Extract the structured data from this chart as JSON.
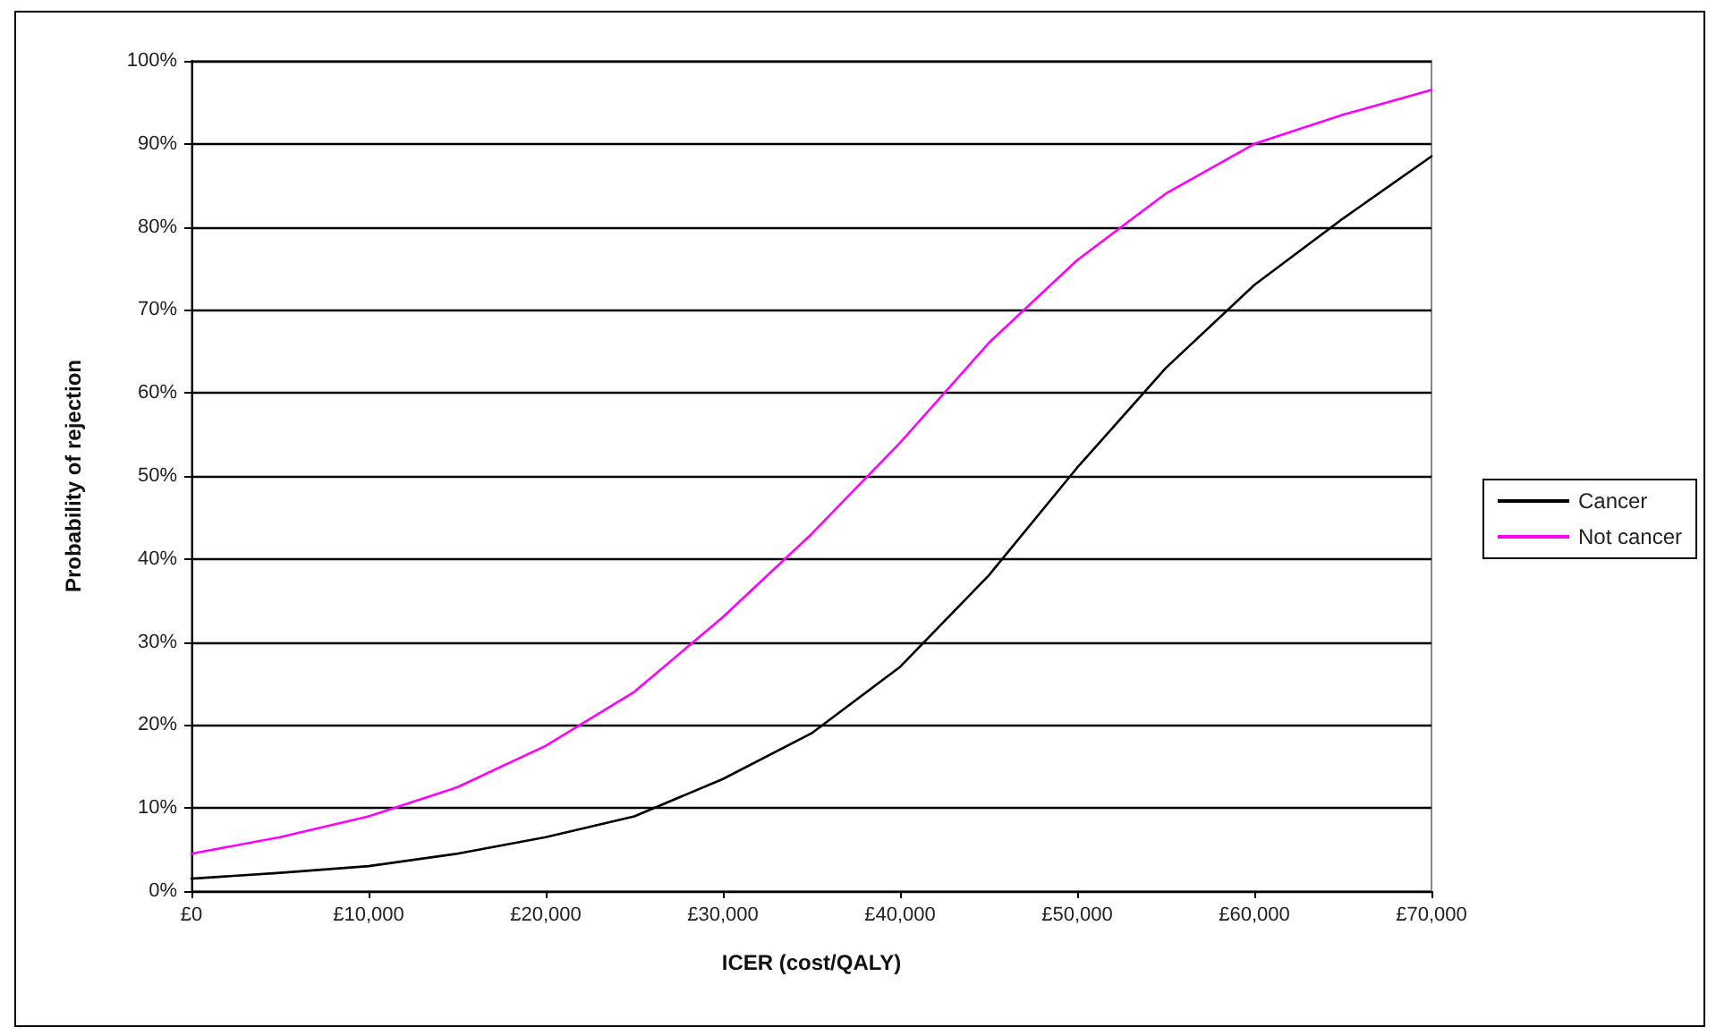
{
  "chart_data": {
    "type": "line",
    "xlabel": "ICER (cost/QALY)",
    "ylabel": "Probability of rejection",
    "x": [
      0,
      5000,
      10000,
      15000,
      20000,
      25000,
      30000,
      35000,
      40000,
      45000,
      50000,
      55000,
      60000,
      65000,
      70000
    ],
    "series": [
      {
        "name": "Cancer",
        "color": "#000000",
        "values": [
          1.5,
          2.2,
          3,
          4.5,
          6.5,
          9,
          13.5,
          19,
          27,
          38,
          51,
          63,
          73,
          81,
          88.5
        ]
      },
      {
        "name": "Not cancer",
        "color": "#ff00ff",
        "values": [
          4.5,
          6.5,
          9,
          12.5,
          17.5,
          24,
          33,
          43,
          54,
          66,
          76,
          84,
          90,
          93.5,
          96.5
        ]
      }
    ],
    "xlim": [
      0,
      70000
    ],
    "xticks": [
      {
        "value": 0,
        "label": "£0"
      },
      {
        "value": 10000,
        "label": "£10,000"
      },
      {
        "value": 20000,
        "label": "£20,000"
      },
      {
        "value": 30000,
        "label": "£30,000"
      },
      {
        "value": 40000,
        "label": "£40,000"
      },
      {
        "value": 50000,
        "label": "£50,000"
      },
      {
        "value": 60000,
        "label": "£60,000"
      },
      {
        "value": 70000,
        "label": "£70,000"
      }
    ],
    "ylim": [
      0,
      100
    ],
    "yticks": [
      {
        "value": 0,
        "label": "0%"
      },
      {
        "value": 10,
        "label": "10%"
      },
      {
        "value": 20,
        "label": "20%"
      },
      {
        "value": 30,
        "label": "30%"
      },
      {
        "value": 40,
        "label": "40%"
      },
      {
        "value": 50,
        "label": "50%"
      },
      {
        "value": 60,
        "label": "60%"
      },
      {
        "value": 70,
        "label": "70%"
      },
      {
        "value": 80,
        "label": "80%"
      },
      {
        "value": 90,
        "label": "90%"
      },
      {
        "value": 100,
        "label": "100%"
      }
    ],
    "grid": "y",
    "legend": "right",
    "marker": "none",
    "line_style": "solid"
  }
}
